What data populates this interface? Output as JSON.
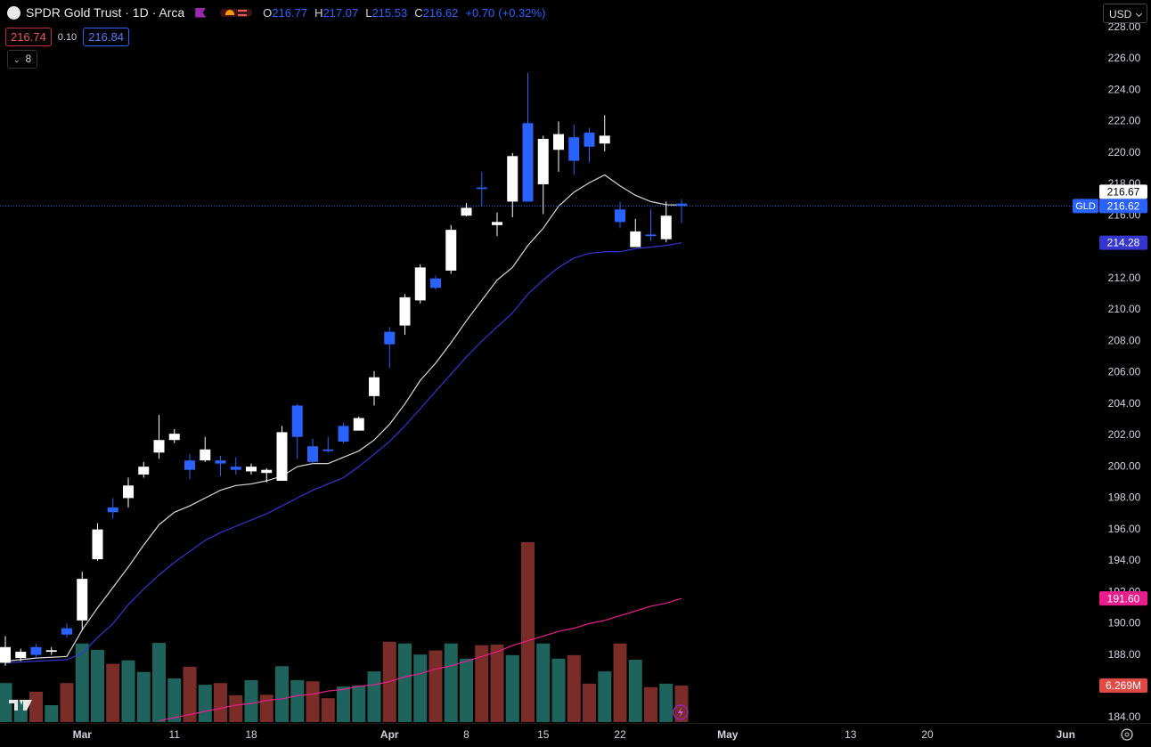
{
  "header": {
    "title": "SPDR Gold Trust · 1D · Arca",
    "o": "O",
    "h": "H",
    "l": "L",
    "c": "C",
    "change": "+0.70",
    "change_pct": "(+0.32%)",
    "bid": "216.74",
    "spread": "0.10",
    "ask": "216.84",
    "indicators": "8",
    "currency": "USD"
  },
  "chart_data": {
    "type": "candlestick",
    "ticker": "GLD",
    "categories": [
      null,
      null,
      null,
      null,
      null,
      "Mar",
      null,
      null,
      null,
      null,
      null,
      "11",
      null,
      null,
      null,
      null,
      "18",
      null,
      null,
      null,
      null,
      null,
      null,
      null,
      null,
      "Apr",
      null,
      null,
      null,
      null,
      "8",
      null,
      null,
      null,
      null,
      "15",
      null,
      null,
      null,
      null,
      "22",
      null,
      null,
      null,
      null,
      null,
      null,
      "May",
      null,
      null,
      null,
      null,
      null,
      null,
      null,
      "13",
      null,
      null,
      null,
      null,
      "20",
      null,
      null,
      null,
      null,
      null,
      null,
      null,
      null,
      "Jun"
    ],
    "ylim": [
      183.72,
      229.75
    ],
    "yticks": [
      {
        "value": 184,
        "label": "184.00"
      },
      {
        "value": 186,
        "label": "186.00"
      },
      {
        "value": 188,
        "label": "188.00"
      },
      {
        "value": 190,
        "label": "190.00"
      },
      {
        "value": 192,
        "label": "192.00"
      },
      {
        "value": 194,
        "label": "194.00"
      },
      {
        "value": 196,
        "label": "196.00"
      },
      {
        "value": 198,
        "label": "198.00"
      },
      {
        "value": 200,
        "label": "200.00"
      },
      {
        "value": 202,
        "label": "202.00"
      },
      {
        "value": 204,
        "label": "204.00"
      },
      {
        "value": 206,
        "label": "206.00"
      },
      {
        "value": 208,
        "label": "208.00"
      },
      {
        "value": 210,
        "label": "210.00"
      },
      {
        "value": 212,
        "label": "212.00"
      },
      {
        "value": 214,
        "label": "214.00"
      },
      {
        "value": 216,
        "label": "216.00"
      },
      {
        "value": 218,
        "label": "218.00"
      },
      {
        "value": 220,
        "label": "220.00"
      },
      {
        "value": 222,
        "label": "222.00"
      },
      {
        "value": 224,
        "label": "224.00"
      },
      {
        "value": 226,
        "label": "226.00"
      },
      {
        "value": 228,
        "label": "228.00"
      }
    ],
    "grid": false,
    "up_color": "#ffffff",
    "down_color": "#2962ff",
    "open": [
      187.5,
      187.8,
      188.5,
      188.2,
      189.7,
      190.2,
      194.1,
      197.4,
      198.0,
      199.5,
      200.9,
      201.7,
      200.4,
      200.4,
      200.4,
      200.0,
      199.7,
      199.6,
      199.1,
      203.9,
      201.3,
      201.1,
      202.6,
      202.3,
      204.5,
      208.6,
      209.0,
      210.6,
      212.0,
      212.5,
      216.0,
      217.8,
      215.4,
      216.9,
      221.9,
      218.0,
      220.2,
      221.0,
      221.3,
      220.6,
      216.4,
      214.0,
      214.8,
      214.5,
      216.77,
      null,
      null,
      null,
      null,
      null,
      null,
      null,
      null,
      null,
      null,
      null,
      null,
      null,
      null,
      null,
      null,
      null,
      null,
      null,
      null,
      null,
      null,
      null,
      null,
      null
    ],
    "high": [
      189.2,
      188.4,
      188.7,
      188.5,
      190.0,
      193.3,
      196.4,
      198.0,
      199.3,
      200.3,
      203.3,
      202.4,
      200.8,
      201.9,
      200.7,
      200.6,
      200.2,
      199.9,
      202.6,
      204.0,
      201.8,
      201.9,
      202.8,
      203.2,
      206.1,
      208.9,
      211.0,
      212.9,
      212.2,
      215.4,
      216.8,
      218.8,
      216.2,
      220.0,
      225.1,
      221.1,
      222.0,
      221.8,
      221.6,
      222.4,
      216.9,
      215.8,
      216.4,
      216.9,
      217.07,
      null,
      null,
      null,
      null,
      null,
      null,
      null,
      null,
      null,
      null,
      null,
      null,
      null,
      null,
      null,
      null,
      null,
      null,
      null,
      null,
      null,
      null,
      null,
      null,
      null
    ],
    "low": [
      187.3,
      187.6,
      187.8,
      188.0,
      189.1,
      189.6,
      194.0,
      196.7,
      197.4,
      199.3,
      200.5,
      201.5,
      199.2,
      200.3,
      199.4,
      199.5,
      199.5,
      199.0,
      199.1,
      200.5,
      200.2,
      200.9,
      201.5,
      202.3,
      203.9,
      206.3,
      208.4,
      210.4,
      211.3,
      212.3,
      215.95,
      216.6,
      214.7,
      215.9,
      216.9,
      216.1,
      218.8,
      218.6,
      219.4,
      220.1,
      215.2,
      214.0,
      214.4,
      214.3,
      215.53,
      null,
      null,
      null,
      null,
      null,
      null,
      null,
      null,
      null,
      null,
      null,
      null,
      null,
      null,
      null,
      null,
      null,
      null,
      null,
      null,
      null,
      null,
      null,
      null,
      null
    ],
    "close": [
      188.5,
      188.2,
      188.0,
      188.3,
      189.3,
      192.85,
      196.0,
      197.1,
      198.8,
      200.0,
      201.7,
      202.1,
      199.8,
      201.1,
      200.2,
      199.8,
      200.0,
      199.8,
      202.2,
      201.9,
      200.3,
      201.0,
      201.6,
      203.1,
      205.7,
      207.8,
      210.8,
      212.7,
      211.4,
      215.1,
      216.5,
      217.7,
      215.6,
      219.8,
      216.9,
      220.9,
      221.2,
      219.5,
      220.4,
      221.1,
      215.6,
      215.0,
      214.7,
      216.0,
      216.62,
      null,
      null,
      null,
      null,
      null,
      null,
      null,
      null,
      null,
      null,
      null,
      null,
      null,
      null,
      null,
      null,
      null,
      null,
      null,
      null,
      null,
      null,
      null,
      null,
      null
    ],
    "overlays": [
      {
        "color": "#d8d8d8",
        "values": [
          187.6,
          187.7,
          187.8,
          187.85,
          187.9,
          189.6,
          191.0,
          192.3,
          193.6,
          195.0,
          196.3,
          197.1,
          197.5,
          198.0,
          198.5,
          198.8,
          198.9,
          199.1,
          199.4,
          200.0,
          200.2,
          200.2,
          200.6,
          201.0,
          201.7,
          202.7,
          204.0,
          205.5,
          206.6,
          207.9,
          209.3,
          210.6,
          211.9,
          212.7,
          214.1,
          215.2,
          216.6,
          217.5,
          218.1,
          218.6,
          217.9,
          217.3,
          216.9,
          216.7,
          216.67,
          null,
          null,
          null,
          null,
          null,
          null,
          null,
          null,
          null,
          null,
          null,
          null,
          null,
          null,
          null,
          null,
          null,
          null,
          null,
          null,
          null,
          null,
          null,
          null,
          null
        ]
      },
      {
        "color": "#3535d0",
        "values": [
          187.5,
          187.55,
          187.6,
          187.65,
          187.7,
          188.1,
          189.1,
          190.0,
          191.2,
          192.2,
          193.1,
          193.9,
          194.6,
          195.3,
          195.8,
          196.2,
          196.6,
          197.0,
          197.5,
          198.0,
          198.5,
          198.9,
          199.3,
          200.0,
          200.8,
          201.6,
          202.6,
          203.7,
          204.8,
          205.9,
          207.0,
          208.0,
          208.9,
          209.8,
          211.0,
          211.9,
          212.7,
          213.3,
          213.6,
          213.7,
          213.7,
          213.9,
          214.0,
          214.1,
          214.28,
          null,
          null,
          null,
          null,
          null,
          null,
          null,
          null,
          null,
          null,
          null,
          null,
          null,
          null,
          null,
          null,
          null,
          null,
          null,
          null,
          null,
          null,
          null,
          null,
          null
        ]
      },
      {
        "color": "#e91e8c",
        "values": [
          null,
          null,
          null,
          null,
          null,
          null,
          null,
          null,
          null,
          null,
          183.8,
          184.0,
          184.2,
          184.4,
          184.6,
          184.8,
          184.9,
          185.1,
          185.2,
          185.4,
          185.5,
          185.7,
          185.8,
          186.0,
          186.1,
          186.3,
          186.6,
          186.8,
          187.1,
          187.3,
          187.6,
          187.9,
          188.2,
          188.6,
          188.9,
          189.2,
          189.5,
          189.7,
          190.0,
          190.2,
          190.5,
          190.8,
          191.1,
          191.3,
          191.6,
          null,
          null,
          null,
          null,
          null,
          null,
          null,
          null,
          null,
          null,
          null,
          null,
          null,
          null,
          null,
          null,
          null,
          null,
          null,
          null,
          null,
          null,
          null,
          null,
          null
        ],
        "value_labels": [
          null,
          null,
          null,
          null,
          null,
          null,
          null,
          null,
          null,
          null,
          null,
          null,
          null,
          null,
          null,
          null,
          null,
          null,
          null,
          null,
          null,
          null,
          null,
          null,
          null,
          null,
          null,
          null,
          null,
          null,
          null,
          null,
          null,
          null,
          null,
          null,
          null,
          null,
          null,
          null,
          null,
          null,
          null,
          null,
          "191.60",
          null,
          null,
          null,
          null,
          null,
          null,
          null,
          null,
          null,
          null,
          null,
          null,
          null,
          null,
          null,
          null,
          null,
          null,
          null,
          null,
          null,
          null,
          null,
          null,
          null
        ]
      }
    ],
    "volume": {
      "ylim": [
        0,
        124
      ],
      "values": [
        6.7,
        3.8,
        5.2,
        2.9,
        6.7,
        13.5,
        12.4,
        10.0,
        10.6,
        8.6,
        13.6,
        7.5,
        9.5,
        6.4,
        6.7,
        4.6,
        7.2,
        4.7,
        9.6,
        7.2,
        7.0,
        4.1,
        6.1,
        6.3,
        8.7,
        13.8,
        13.5,
        11.6,
        12.3,
        13.5,
        10.9,
        13.2,
        13.3,
        11.5,
        30.9,
        13.5,
        10.9,
        11.5,
        6.6,
        8.7,
        13.5,
        10.7,
        6.0,
        6.6,
        6.269,
        null,
        null,
        null,
        null,
        null,
        null,
        null,
        null,
        null,
        null,
        null,
        null,
        null,
        null,
        null,
        null,
        null,
        null,
        null,
        null,
        null,
        null,
        null,
        null,
        null
      ],
      "value_labels": [
        null,
        null,
        null,
        null,
        null,
        null,
        null,
        null,
        null,
        null,
        null,
        null,
        null,
        null,
        null,
        null,
        null,
        null,
        null,
        null,
        null,
        null,
        null,
        null,
        null,
        null,
        null,
        null,
        null,
        null,
        null,
        null,
        null,
        null,
        null,
        null,
        null,
        null,
        null,
        null,
        null,
        null,
        null,
        null,
        "6.269M",
        null,
        null,
        null,
        null,
        null,
        null,
        null,
        null,
        null,
        null,
        null,
        null,
        null,
        null,
        null,
        null,
        null,
        null,
        null,
        null,
        null,
        null,
        null,
        null,
        null
      ],
      "colors": [
        "#1f645c",
        "#1f645c",
        "#7a2c29",
        "#1f645c",
        "#7a2c29",
        "#1f645c",
        "#1f645c",
        "#7a2c29",
        "#1f645c",
        "#1f645c",
        "#1f645c",
        "#1f645c",
        "#7a2c29",
        "#1f645c",
        "#7a2c29",
        "#7a2c29",
        "#1f645c",
        "#7a2c29",
        "#1f645c",
        "#1f645c",
        "#7a2c29",
        "#7a2c29",
        "#1f645c",
        "#1f645c",
        "#1f645c",
        "#7a2c29",
        "#1f645c",
        "#1f645c",
        "#7a2c29",
        "#1f645c",
        "#1f645c",
        "#7a2c29",
        "#7a2c29",
        "#1f645c",
        "#7a2c29",
        "#1f645c",
        "#1f645c",
        "#7a2c29",
        "#7a2c29",
        "#1f645c",
        "#7a2c29",
        "#1f645c",
        "#7a2c29",
        "#1f645c",
        "#7a2c29",
        null,
        null,
        null,
        null,
        null,
        null,
        null,
        null,
        null,
        null,
        null,
        null,
        null,
        null,
        null,
        null,
        null,
        null,
        null,
        null,
        null,
        null,
        null,
        null,
        null
      ]
    }
  }
}
